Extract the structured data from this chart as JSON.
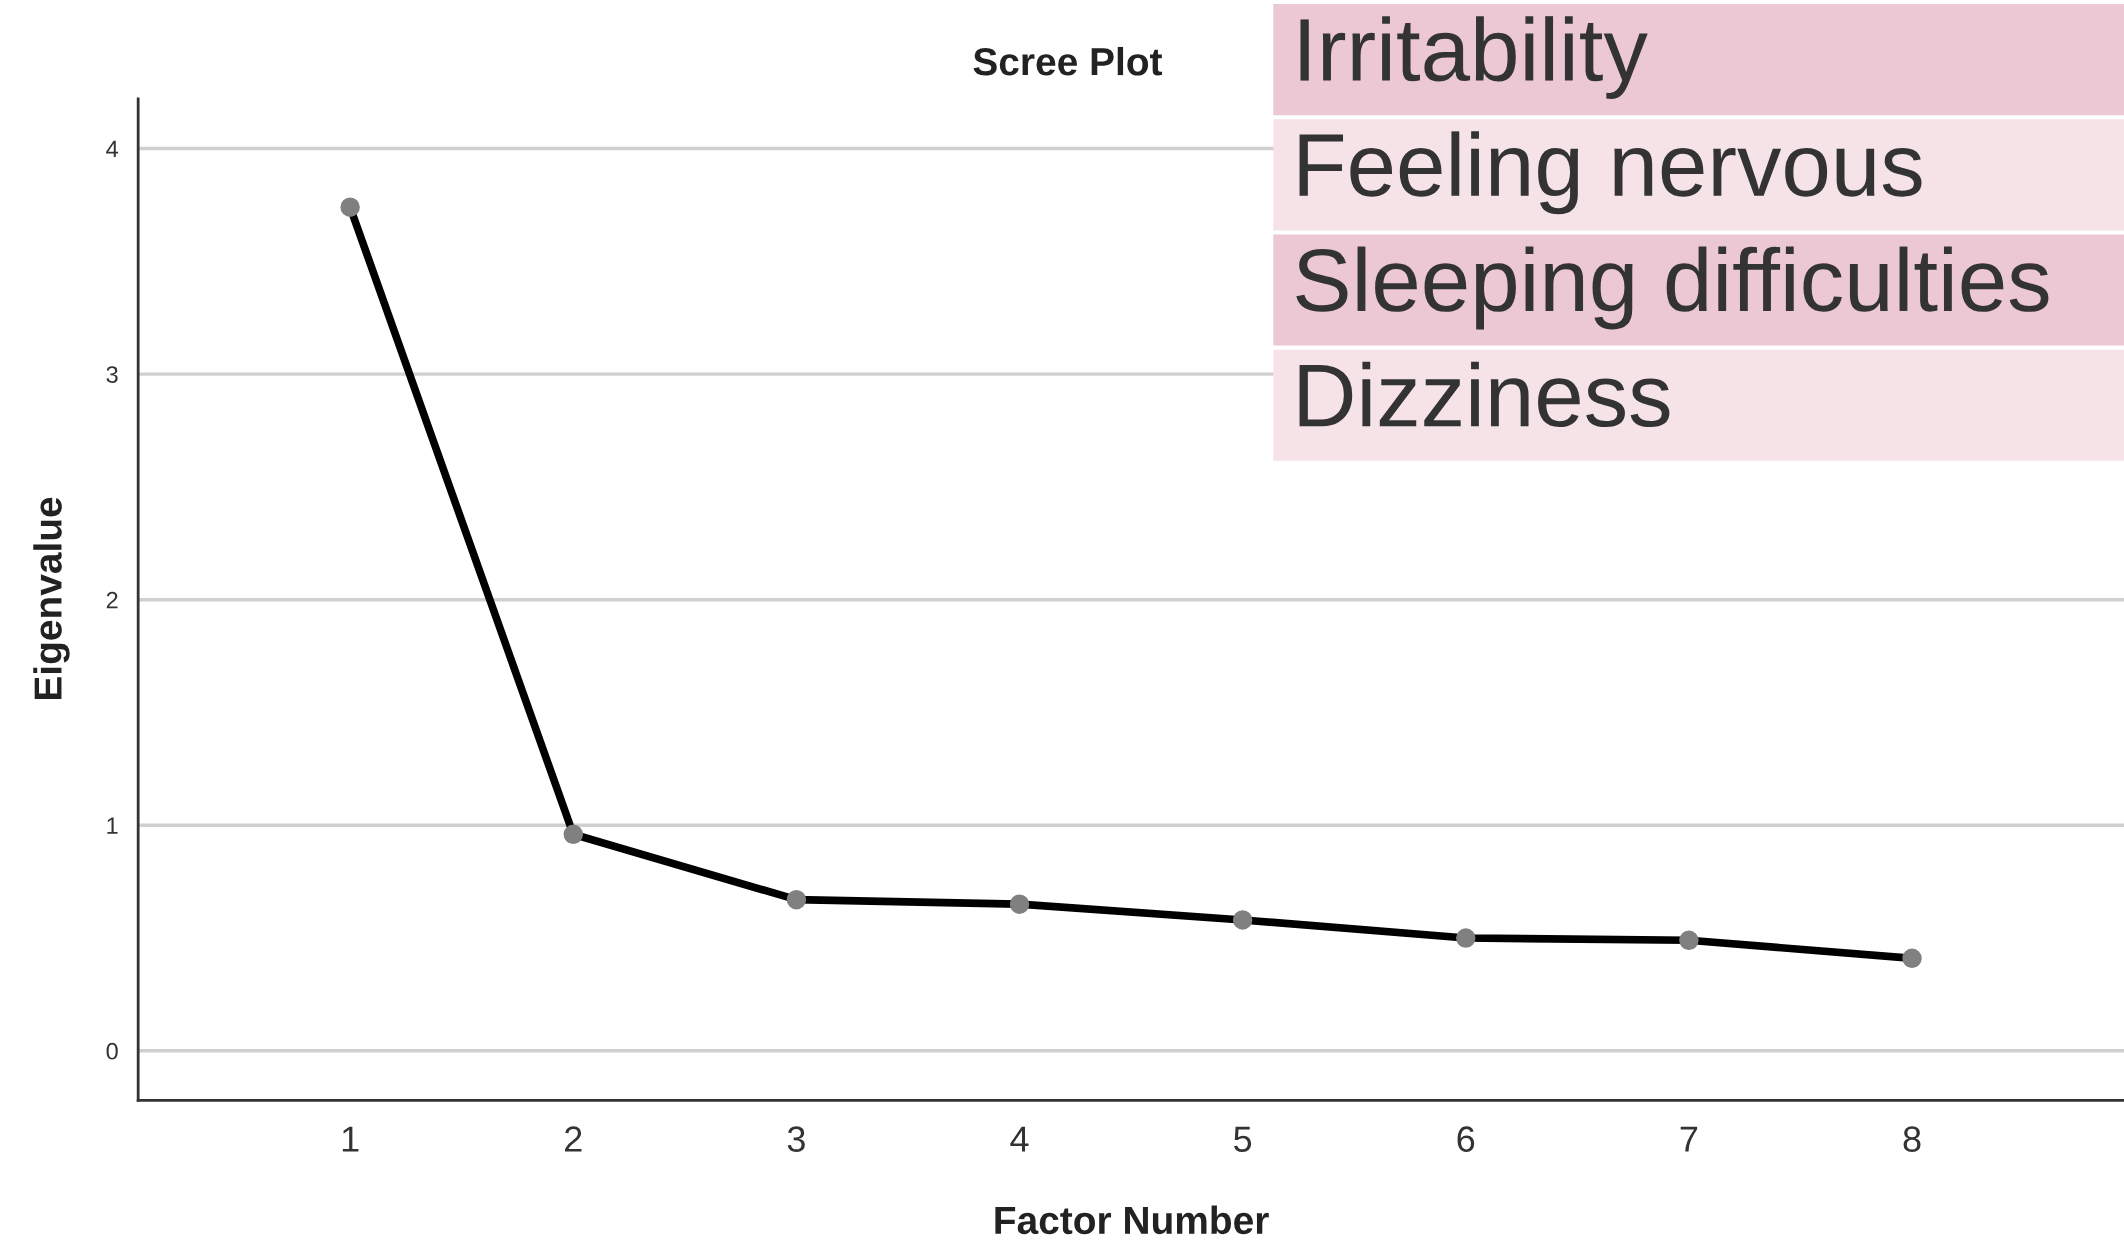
{
  "chart_data": {
    "type": "line",
    "title": "Scree Plot",
    "xlabel": "Factor Number",
    "ylabel": "Eigenvalue",
    "x": [
      1,
      2,
      3,
      4,
      5,
      6,
      7,
      8
    ],
    "series": [
      {
        "color": "#000000",
        "values": [
          3.74,
          0.96,
          0.67,
          0.65,
          0.58,
          0.5,
          0.49,
          0.41
        ]
      }
    ],
    "xlim": [
      0.05,
      8.95
    ],
    "xticks": [
      1,
      2,
      3,
      4,
      5,
      6,
      7,
      8
    ],
    "ylim": [
      -0.22,
      4.22
    ],
    "yticks": [
      0,
      1,
      2,
      3,
      4
    ],
    "grid": "y",
    "marker": "circle",
    "line_style": "solid",
    "legend": false,
    "annotations": [
      "Irritability",
      "Feeling nervous",
      "Sleeping difficulties",
      "Dizziness"
    ]
  }
}
